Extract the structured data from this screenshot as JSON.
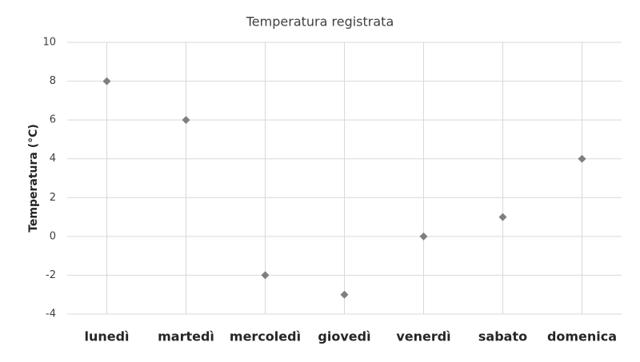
{
  "chart_data": {
    "type": "scatter",
    "title": "Temperatura registrata",
    "ylabel": "Temperatura (°C)",
    "categories": [
      "lunedì",
      "martedì",
      "mercoledì",
      "giovedì",
      "venerdì",
      "sabato",
      "domenica"
    ],
    "values": [
      8,
      6,
      -2,
      -3,
      0,
      1,
      4
    ],
    "color": "#7f7f7f",
    "marker": "diamond",
    "ylim": [
      -4,
      10
    ],
    "yticks": [
      -4,
      -2,
      0,
      2,
      4,
      6,
      8,
      10
    ],
    "grid": true
  }
}
